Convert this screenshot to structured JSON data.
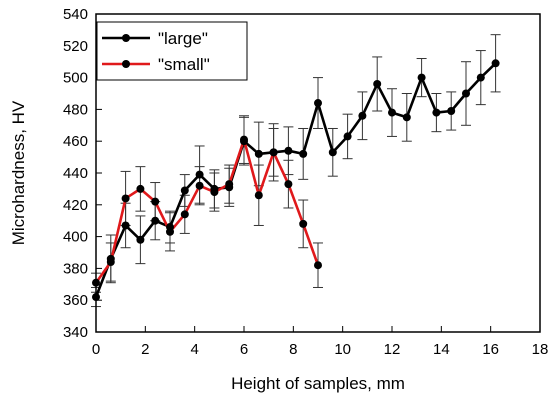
{
  "chart_data": {
    "type": "line",
    "title": "",
    "xlabel": "Height of samples, mm",
    "ylabel": "Microhardness, HV",
    "xlim": [
      0,
      18
    ],
    "ylim": [
      340,
      540
    ],
    "xticks": [
      0,
      2,
      4,
      6,
      8,
      10,
      12,
      14,
      16,
      18
    ],
    "yticks": [
      340,
      360,
      380,
      400,
      420,
      440,
      460,
      480,
      500,
      520,
      540
    ],
    "grid": false,
    "legend_position": "top-left",
    "series": [
      {
        "name": "\"large\"",
        "color": "#000000",
        "x": [
          0.0,
          0.6,
          1.2,
          1.8,
          2.4,
          3.0,
          3.6,
          4.2,
          4.8,
          5.4,
          6.0,
          6.6,
          7.2,
          7.8,
          8.4,
          9.0,
          9.6,
          10.2,
          10.8,
          11.4,
          12.0,
          12.6,
          13.2,
          13.8,
          14.4,
          15.0,
          15.6,
          16.2
        ],
        "y": [
          362,
          386,
          407,
          398,
          410,
          406,
          429,
          439,
          430,
          431,
          460,
          452,
          453,
          454,
          452,
          484,
          453,
          463,
          476,
          496,
          478,
          475,
          500,
          478,
          479,
          490,
          500,
          509
        ],
        "err": [
          6,
          15,
          14,
          15,
          12,
          10,
          10,
          18,
          12,
          12,
          15,
          20,
          18,
          15,
          16,
          16,
          15,
          14,
          15,
          17,
          15,
          15,
          12,
          12,
          12,
          20,
          17,
          18
        ]
      },
      {
        "name": "\"small\"",
        "color": "#e0191b",
        "x": [
          0.0,
          0.6,
          1.2,
          1.8,
          2.4,
          3.0,
          3.6,
          4.2,
          4.8,
          5.4,
          6.0,
          6.6,
          7.2,
          7.8,
          8.4,
          9.0
        ],
        "y": [
          371,
          384,
          424,
          430,
          422,
          403,
          414,
          432,
          428,
          433,
          461,
          426,
          453,
          433,
          408,
          382
        ],
        "err": [
          6,
          12,
          17,
          14,
          12,
          12,
          12,
          12,
          12,
          12,
          15,
          19,
          15,
          15,
          15,
          14
        ]
      }
    ]
  }
}
